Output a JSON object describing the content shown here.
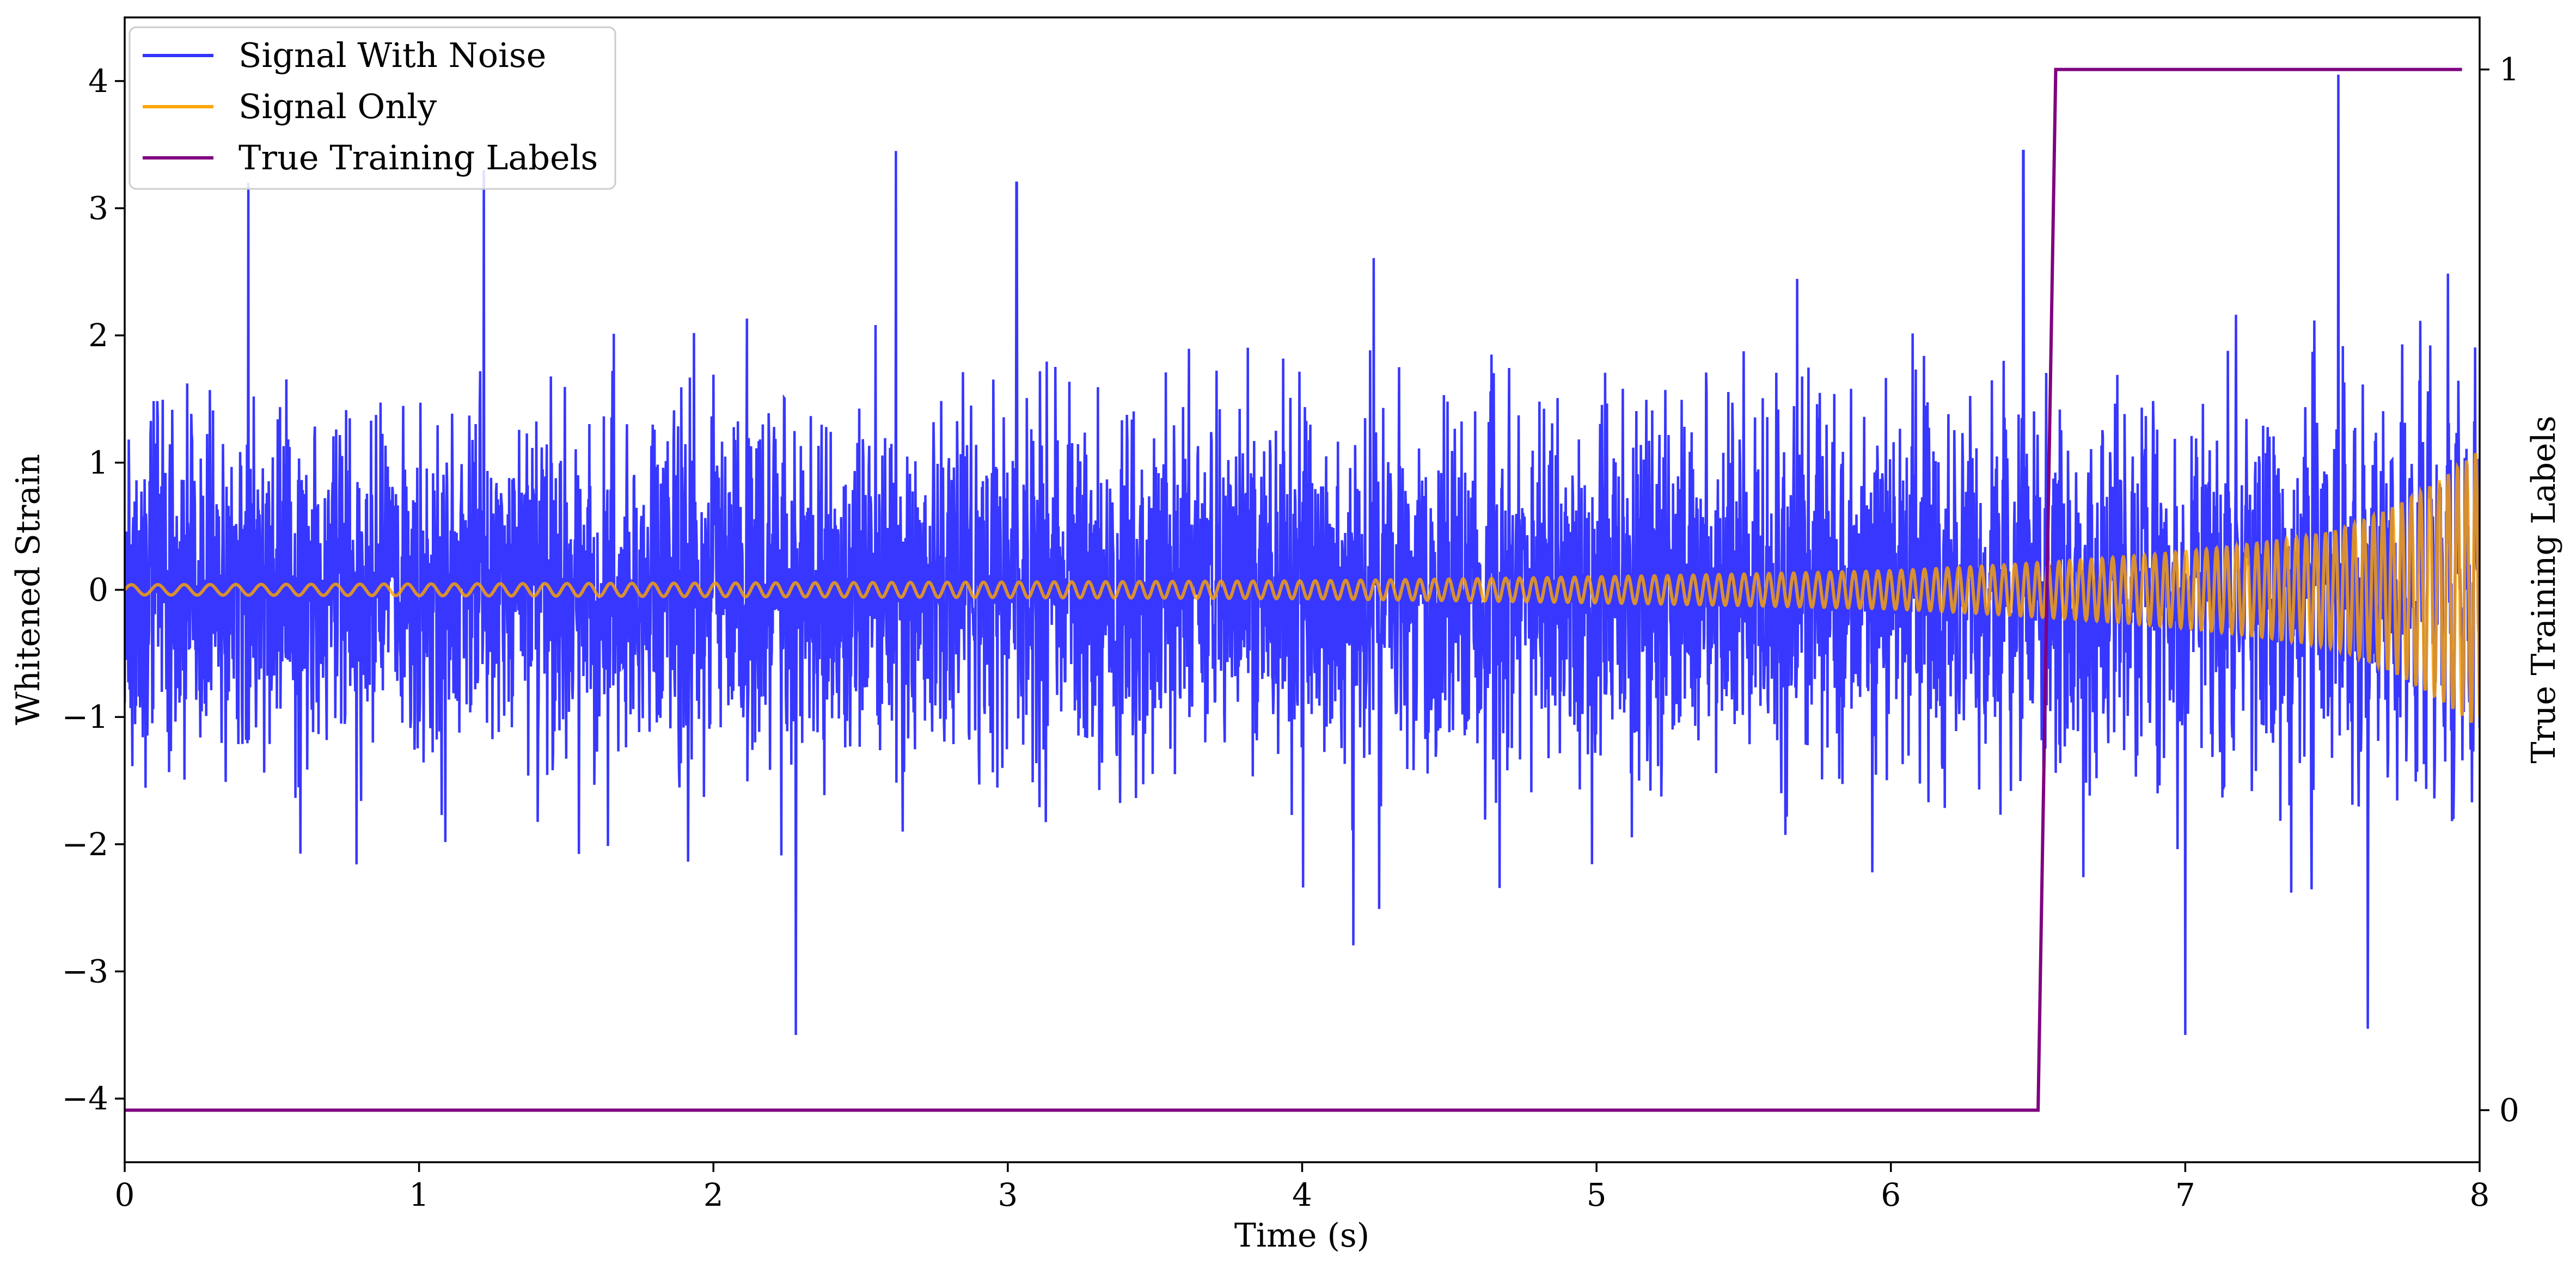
{
  "chart_data": {
    "type": "line",
    "xlabel": "Time (s)",
    "ylabel": "Whitened Strain",
    "y2label": "True Training Labels",
    "xlim": [
      0,
      8
    ],
    "ylim": [
      -4.5,
      4.5
    ],
    "y2lim": [
      -0.05,
      1.05
    ],
    "xticks": [
      0,
      1,
      2,
      3,
      4,
      5,
      6,
      7,
      8
    ],
    "yticks": [
      -4,
      -3,
      -2,
      -1,
      0,
      1,
      2,
      3,
      4
    ],
    "y2ticks": [
      0,
      1
    ],
    "legend_position": "top-left",
    "grid": false,
    "series": [
      {
        "name": "Signal With Noise",
        "axis": "left",
        "color": "#3333ff",
        "style": "dense random noise, standard deviation about 0.7, peaks reaching roughly ±3.5",
        "notable_peaks": [
          {
            "x": 0.42,
            "y": 3.2
          },
          {
            "x": 1.22,
            "y": 3.3
          },
          {
            "x": 2.28,
            "y": -3.5
          },
          {
            "x": 2.62,
            "y": 3.45
          },
          {
            "x": 3.03,
            "y": 3.2
          },
          {
            "x": 6.45,
            "y": 3.45
          },
          {
            "x": 7.0,
            "y": -3.5
          },
          {
            "x": 7.52,
            "y": 4.05
          },
          {
            "x": 7.62,
            "y": -3.45
          }
        ]
      },
      {
        "name": "Signal Only",
        "axis": "left",
        "color": "#ffa500",
        "style": "chirp: frequency and amplitude rising with time",
        "amplitude_at": [
          {
            "x": 0,
            "y": 0.04
          },
          {
            "x": 4,
            "y": 0.07
          },
          {
            "x": 6,
            "y": 0.15
          },
          {
            "x": 7,
            "y": 0.3
          },
          {
            "x": 7.5,
            "y": 0.45
          },
          {
            "x": 8,
            "y": 1.1
          }
        ]
      },
      {
        "name": "True Training Labels",
        "axis": "right",
        "color": "#800080",
        "x": [
          0,
          6.5,
          6.56,
          7.94
        ],
        "y": [
          0,
          0,
          1,
          1
        ]
      }
    ]
  }
}
